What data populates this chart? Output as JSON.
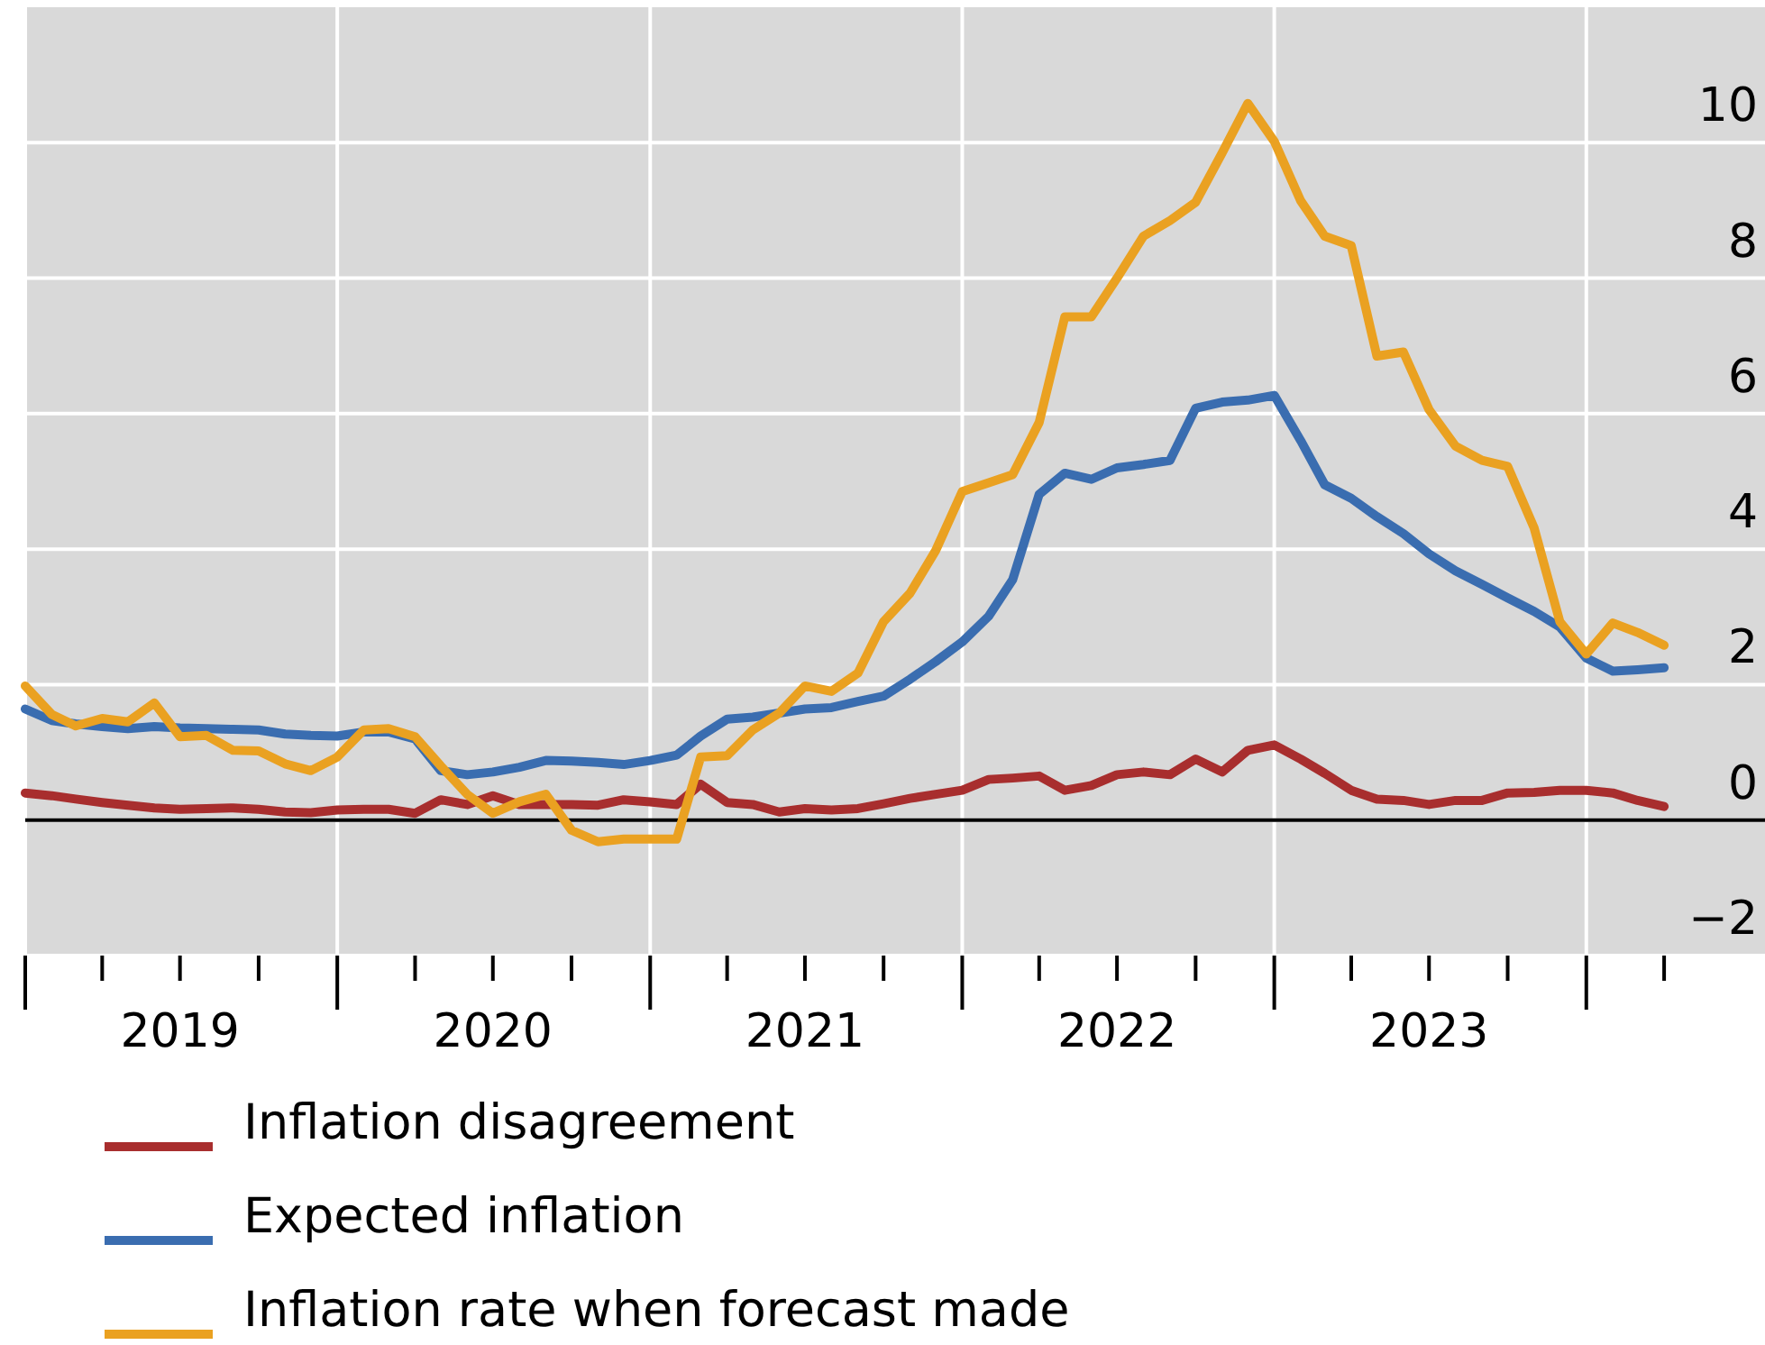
{
  "chart_data": {
    "type": "line",
    "x": [
      "2019-01",
      "2019-02",
      "2019-03",
      "2019-04",
      "2019-05",
      "2019-06",
      "2019-07",
      "2019-08",
      "2019-09",
      "2019-10",
      "2019-11",
      "2019-12",
      "2020-01",
      "2020-02",
      "2020-03",
      "2020-04",
      "2020-05",
      "2020-06",
      "2020-07",
      "2020-08",
      "2020-09",
      "2020-10",
      "2020-11",
      "2020-12",
      "2021-01",
      "2021-02",
      "2021-03",
      "2021-04",
      "2021-05",
      "2021-06",
      "2021-07",
      "2021-08",
      "2021-09",
      "2021-10",
      "2021-11",
      "2021-12",
      "2022-01",
      "2022-02",
      "2022-03",
      "2022-04",
      "2022-05",
      "2022-06",
      "2022-07",
      "2022-08",
      "2022-09",
      "2022-10",
      "2022-11",
      "2022-12",
      "2023-01",
      "2023-02",
      "2023-03",
      "2023-04",
      "2023-05",
      "2023-06",
      "2023-07",
      "2023-08",
      "2023-09",
      "2023-10",
      "2023-11",
      "2023-12",
      "2024-01",
      "2024-02",
      "2024-03",
      "2024-04"
    ],
    "series": [
      {
        "name": "Inflation disagreement",
        "color": "#a82e2e",
        "values": [
          0.4,
          0.36,
          0.31,
          0.26,
          0.22,
          0.18,
          0.16,
          0.17,
          0.18,
          0.16,
          0.12,
          0.11,
          0.15,
          0.16,
          0.16,
          0.1,
          0.3,
          0.23,
          0.36,
          0.23,
          0.23,
          0.23,
          0.22,
          0.3,
          0.27,
          0.23,
          0.53,
          0.26,
          0.23,
          0.12,
          0.17,
          0.15,
          0.17,
          0.24,
          0.32,
          0.38,
          0.44,
          0.6,
          0.62,
          0.65,
          0.44,
          0.51,
          0.67,
          0.71,
          0.67,
          0.9,
          0.71,
          1.03,
          1.11,
          0.9,
          0.69,
          0.44,
          0.31,
          0.29,
          0.23,
          0.29,
          0.29,
          0.4,
          0.41,
          0.44,
          0.44,
          0.4,
          0.29,
          0.2
        ]
      },
      {
        "name": "Expected inflation",
        "color": "#3a6db0",
        "values": [
          1.64,
          1.47,
          1.42,
          1.38,
          1.35,
          1.38,
          1.36,
          1.35,
          1.34,
          1.33,
          1.27,
          1.25,
          1.24,
          1.3,
          1.3,
          1.2,
          0.73,
          0.67,
          0.71,
          0.78,
          0.88,
          0.87,
          0.85,
          0.82,
          0.88,
          0.96,
          1.24,
          1.49,
          1.52,
          1.58,
          1.64,
          1.66,
          1.75,
          1.83,
          2.08,
          2.34,
          2.63,
          3.01,
          3.55,
          4.81,
          5.12,
          5.03,
          5.2,
          5.25,
          5.31,
          6.08,
          6.17,
          6.2,
          6.27,
          5.6,
          4.95,
          4.75,
          4.48,
          4.23,
          3.93,
          3.68,
          3.48,
          3.28,
          3.08,
          2.85,
          2.39,
          2.2,
          2.22,
          2.25
        ]
      },
      {
        "name": "Inflation rate when forecast made",
        "color": "#eaa121",
        "values": [
          1.98,
          1.56,
          1.39,
          1.5,
          1.45,
          1.73,
          1.23,
          1.25,
          1.03,
          1.02,
          0.83,
          0.73,
          0.93,
          1.33,
          1.35,
          1.23,
          0.8,
          0.38,
          0.1,
          0.27,
          0.38,
          -0.15,
          -0.32,
          -0.28,
          -0.28,
          -0.28,
          0.93,
          0.95,
          1.33,
          1.58,
          1.98,
          1.9,
          2.17,
          2.93,
          3.35,
          3.98,
          4.85,
          4.98,
          5.1,
          5.87,
          7.43,
          7.43,
          8.0,
          8.62,
          8.85,
          9.12,
          9.85,
          10.58,
          10.02,
          9.14,
          8.62,
          8.48,
          6.85,
          6.91,
          6.06,
          5.52,
          5.31,
          5.22,
          4.31,
          2.93,
          2.45,
          2.91,
          2.77,
          2.58
        ]
      }
    ],
    "xlim": [
      "2019-01-01",
      "2024-07-28"
    ],
    "xticks": [
      {
        "value": "2019-01-01",
        "label": null
      },
      {
        "value": "2019-04-01",
        "label": null
      },
      {
        "value": "2019-07-01",
        "label": "2019"
      },
      {
        "value": "2019-10-01",
        "label": null
      },
      {
        "value": "2020-01-01",
        "label": null
      },
      {
        "value": "2020-04-01",
        "label": null
      },
      {
        "value": "2020-07-01",
        "label": "2020"
      },
      {
        "value": "2020-10-01",
        "label": null
      },
      {
        "value": "2021-01-01",
        "label": null
      },
      {
        "value": "2021-04-01",
        "label": null
      },
      {
        "value": "2021-07-01",
        "label": "2021"
      },
      {
        "value": "2021-10-01",
        "label": null
      },
      {
        "value": "2022-01-01",
        "label": null
      },
      {
        "value": "2022-04-01",
        "label": null
      },
      {
        "value": "2022-07-01",
        "label": "2022"
      },
      {
        "value": "2022-10-01",
        "label": null
      },
      {
        "value": "2023-01-01",
        "label": null
      },
      {
        "value": "2023-04-01",
        "label": null
      },
      {
        "value": "2023-07-01",
        "label": "2023"
      },
      {
        "value": "2023-10-01",
        "label": null
      },
      {
        "value": "2024-01-01",
        "label": null
      },
      {
        "value": "2024-04-01",
        "label": null
      }
    ],
    "ylim": [
      -2,
      12
    ],
    "yticks": [
      {
        "value": -2,
        "label": "−2"
      },
      0,
      2,
      4,
      6,
      8,
      10
    ],
    "grid": true,
    "ref_lines": [
      {
        "axis": "y",
        "value": 0,
        "color": "#000000"
      }
    ],
    "legend": "bottom",
    "line_style": "solid",
    "marker": "none"
  }
}
